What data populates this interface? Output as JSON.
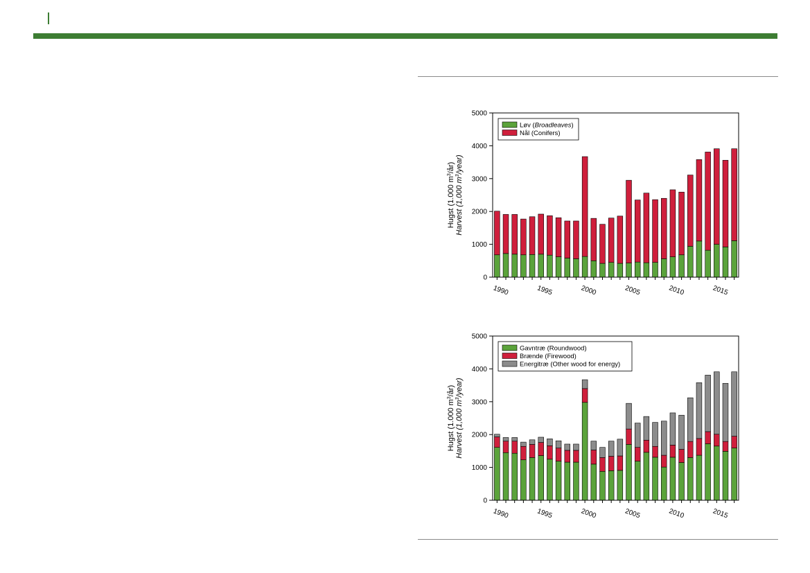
{
  "page": {
    "colors": {
      "banner": "#3d7d33",
      "rule": "#8a8a8a"
    }
  },
  "chart_data": [
    {
      "type": "bar",
      "stacked": true,
      "ylabel_line1": "Hugst (1.000 m",
      "ylabel_line1_sup": "3",
      "ylabel_line1_end": "/år)",
      "ylabel_line2": "Harvest (1,000 m",
      "ylabel_line2_sup": "3",
      "ylabel_line2_end": "/year)",
      "ylim": [
        0,
        5000
      ],
      "yticks": [
        "0",
        "1000",
        "2000",
        "3000",
        "4000",
        "5000"
      ],
      "x": [
        1990,
        1991,
        1992,
        1993,
        1994,
        1995,
        1996,
        1997,
        1998,
        1999,
        2000,
        2001,
        2002,
        2003,
        2004,
        2005,
        2006,
        2007,
        2008,
        2009,
        2010,
        2011,
        2012,
        2013,
        2014,
        2015,
        2016,
        2017
      ],
      "xticks": [
        "1990",
        "1995",
        "2000",
        "2005",
        "2010",
        "2015"
      ],
      "legend_position": "top-left",
      "series": [
        {
          "name": "Løv",
          "name_italic": "Broadleaves",
          "name_prefix": "Løv (",
          "name_suffix": ")",
          "color": "#5ba33b",
          "values": [
            680,
            720,
            700,
            680,
            690,
            700,
            670,
            620,
            580,
            560,
            630,
            500,
            420,
            450,
            420,
            430,
            460,
            440,
            450,
            560,
            620,
            680,
            940,
            1100,
            820,
            1000,
            920,
            1110
          ]
        },
        {
          "name": "Nål (Conifers)",
          "color": "#cf1f3c",
          "values": [
            1330,
            1190,
            1210,
            1090,
            1150,
            1220,
            1200,
            1190,
            1130,
            1150,
            3040,
            1290,
            1190,
            1350,
            1440,
            2520,
            1890,
            2120,
            1910,
            1840,
            2040,
            1910,
            2170,
            2480,
            2990,
            2910,
            2640,
            2800
          ]
        }
      ]
    },
    {
      "type": "bar",
      "stacked": true,
      "ylabel_line1": "Hugst (1.000 m",
      "ylabel_line1_sup": "3",
      "ylabel_line1_end": "/år)",
      "ylabel_line2": "Harvest (1,000 m",
      "ylabel_line2_sup": "3",
      "ylabel_line2_end": "/year)",
      "ylim": [
        0,
        5000
      ],
      "yticks": [
        "0",
        "1000",
        "2000",
        "3000",
        "4000",
        "5000"
      ],
      "x": [
        1990,
        1991,
        1992,
        1993,
        1994,
        1995,
        1996,
        1997,
        1998,
        1999,
        2000,
        2001,
        2002,
        2003,
        2004,
        2005,
        2006,
        2007,
        2008,
        2009,
        2010,
        2011,
        2012,
        2013,
        2014,
        2015,
        2016,
        2017
      ],
      "xticks": [
        "1990",
        "1995",
        "2000",
        "2005",
        "2010",
        "2015"
      ],
      "legend_position": "top-left",
      "series": [
        {
          "name": "Gavntræ (Roundwood)",
          "color": "#5ba33b",
          "values": [
            1610,
            1450,
            1430,
            1230,
            1300,
            1360,
            1250,
            1190,
            1160,
            1160,
            2980,
            1100,
            880,
            900,
            910,
            1700,
            1190,
            1460,
            1310,
            1010,
            1310,
            1150,
            1300,
            1370,
            1720,
            1650,
            1490,
            1590
          ]
        },
        {
          "name": "Brænde (Firewood)",
          "color": "#cf1f3c",
          "values": [
            320,
            350,
            370,
            410,
            400,
            400,
            410,
            400,
            360,
            360,
            420,
            430,
            420,
            440,
            440,
            470,
            420,
            370,
            330,
            360,
            370,
            400,
            490,
            510,
            370,
            360,
            300,
            360
          ]
        },
        {
          "name": "Energitræ (Other wood for energy)",
          "color": "#8c8c8c",
          "values": [
            80,
            110,
            110,
            130,
            140,
            160,
            210,
            220,
            190,
            190,
            270,
            270,
            310,
            460,
            510,
            780,
            740,
            720,
            730,
            1040,
            980,
            1040,
            1330,
            1700,
            1720,
            1900,
            1770,
            1960
          ]
        }
      ]
    }
  ]
}
